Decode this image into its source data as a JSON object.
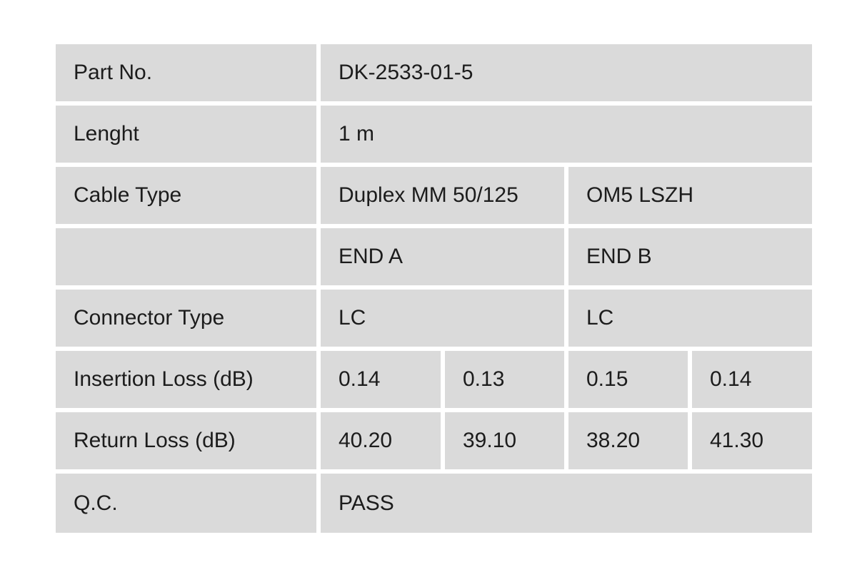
{
  "rows": {
    "part_no": {
      "label": "Part No.",
      "value": "DK-2533-01-5"
    },
    "length": {
      "label": "Lenght",
      "value": "1 m"
    },
    "cable_type": {
      "label": "Cable Type",
      "value_a": "Duplex MM 50/125",
      "value_b": "OM5 LSZH"
    },
    "ends": {
      "label": "",
      "end_a": "END A",
      "end_b": "END B"
    },
    "connector_type": {
      "label": "Connector Type",
      "end_a": "LC",
      "end_b": "LC"
    },
    "insertion_loss": {
      "label": "Insertion Loss (dB)",
      "values": [
        "0.14",
        "0.13",
        "0.15",
        "0.14"
      ]
    },
    "return_loss": {
      "label": "Return Loss (dB)",
      "values": [
        "40.20",
        "39.10",
        "38.20",
        "41.30"
      ]
    },
    "qc": {
      "label": "Q.C.",
      "value": "PASS"
    }
  }
}
